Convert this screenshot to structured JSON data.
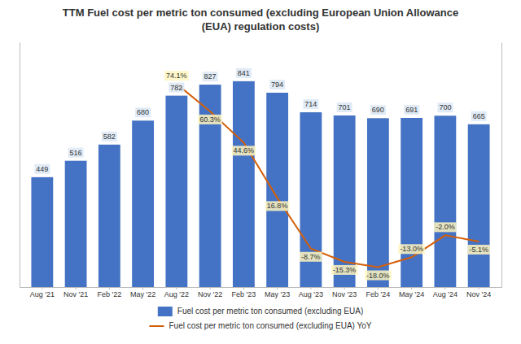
{
  "chart_data": {
    "type": "bar",
    "title": "TTM Fuel cost per metric ton consumed (excluding European Union Allowance\n(EUA) regulation costs)",
    "categories": [
      "Aug '21",
      "Nov '21",
      "Feb '22",
      "May '22",
      "Aug '22",
      "Nov '22",
      "Feb '23",
      "May '23",
      "Aug '23",
      "Nov '23",
      "Feb '24",
      "May '24",
      "Aug '24",
      "Nov '24"
    ],
    "series": [
      {
        "name": "Fuel cost per metric ton consumed (excluding EUA)",
        "type": "bar",
        "color": "#4472C4",
        "values": [
          449,
          516,
          582,
          680,
          782,
          827,
          841,
          794,
          714,
          701,
          690,
          691,
          700,
          665
        ],
        "data_labels": true
      },
      {
        "name": "Fuel cost per metric ton consumed (excluding EUA) YoY",
        "type": "line",
        "axis": "y2",
        "color": "#D45F0A",
        "values": [
          null,
          null,
          null,
          null,
          74.1,
          60.3,
          44.6,
          16.8,
          -8.7,
          -15.3,
          -18.0,
          -13.0,
          -2.0,
          -5.1
        ],
        "value_labels": [
          null,
          null,
          null,
          null,
          "74.1%",
          "60.3%",
          "44.6%",
          "16.8%",
          "-8.7%",
          "-15.3%",
          "-18.0%",
          "-13.0%",
          "-2.0%",
          "-5.1%"
        ],
        "data_labels": true
      }
    ],
    "ylim": [
      0,
      1000
    ],
    "y2lim": [
      -28,
      95
    ],
    "tick_labels": "x",
    "grid": false,
    "legend": "bottom"
  }
}
